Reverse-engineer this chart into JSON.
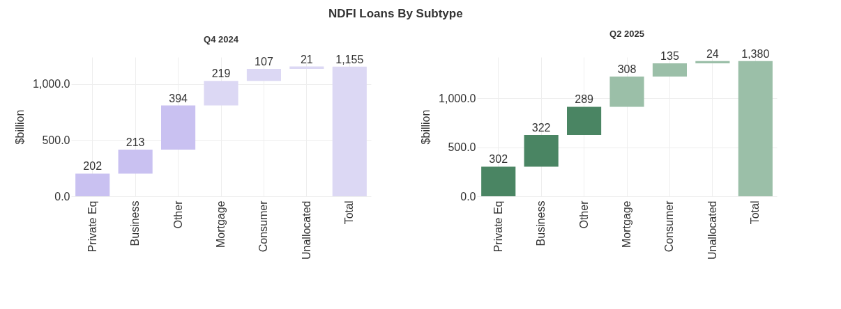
{
  "chart_data": [
    {
      "type": "bar",
      "title": "NDFI Loans By Subtype",
      "subtitle": "Q4 2024",
      "ylabel": "$billion",
      "categories": [
        "Private Eq",
        "Business",
        "Other",
        "Mortgage",
        "Consumer",
        "Unallocated",
        "Total"
      ],
      "values": [
        202,
        213,
        394,
        219,
        107,
        21,
        1155
      ],
      "base": [
        0,
        202,
        415,
        809,
        1028,
        1135,
        0
      ],
      "colors": [
        "#c9c1f1",
        "#c9c1f1",
        "#c9c1f1",
        "#dcd8f4",
        "#dcd8f4",
        "#dcd8f4",
        "#dcd8f4"
      ],
      "value_labels": [
        "202",
        "213",
        "394",
        "219",
        "107",
        "21",
        "1,155"
      ],
      "ylim": [
        0,
        1240
      ],
      "yticks": [
        {
          "value": 0,
          "label": "0.0"
        },
        {
          "value": 500,
          "label": "500.0"
        },
        {
          "value": 1000,
          "label": "1,000.0"
        }
      ],
      "grid": true
    },
    {
      "type": "bar",
      "subtitle": "Q2 2025",
      "ylabel": "$billion",
      "categories": [
        "Private Eq",
        "Business",
        "Other",
        "Mortgage",
        "Consumer",
        "Unallocated",
        "Total"
      ],
      "values": [
        302,
        322,
        289,
        308,
        135,
        24,
        1380
      ],
      "base": [
        0,
        302,
        624,
        913,
        1221,
        1356,
        0
      ],
      "colors": [
        "#4a8563",
        "#4a8563",
        "#4a8563",
        "#9bbfa8",
        "#9bbfa8",
        "#9bbfa8",
        "#9bbfa8"
      ],
      "value_labels": [
        "302",
        "322",
        "289",
        "308",
        "135",
        "24",
        "1,380"
      ],
      "ylim": [
        0,
        1420
      ],
      "yticks": [
        {
          "value": 0,
          "label": "0.0"
        },
        {
          "value": 500,
          "label": "500.0"
        },
        {
          "value": 1000,
          "label": "1,000.0"
        }
      ],
      "grid": true
    }
  ]
}
